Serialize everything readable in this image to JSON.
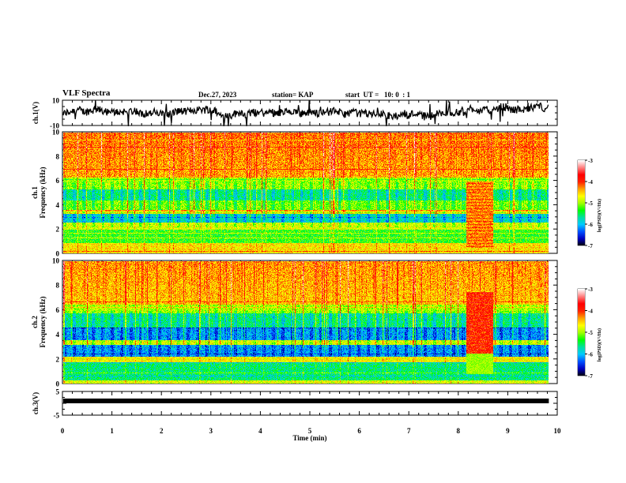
{
  "header": {
    "title": "VLF Spectra",
    "date": "Dec.27, 2023",
    "station": "station= KAP",
    "start_ut": "start  UT =   10: 0  : 1"
  },
  "chart_data": [
    {
      "id": "ch1-waveform",
      "type": "line",
      "title": "VLF Spectra",
      "ylabel": "ch.1(V)",
      "xlabel": "",
      "xlim": [
        0,
        10
      ],
      "ylim": [
        -10,
        10
      ],
      "yticks": [
        "10",
        "-10"
      ],
      "data_end_min": 9.83,
      "description": "Noisy waveform fluctuating roughly between -8 and +8 V around a mean near 0 V",
      "approx_mean": 0,
      "approx_amplitude": 8
    },
    {
      "id": "ch1-spectrogram",
      "type": "heatmap",
      "ylabel_line1": "ch.1",
      "ylabel_line2": "Frequency  (kHz)",
      "xlim": [
        0,
        10
      ],
      "ylim": [
        0,
        10
      ],
      "yticks": [
        "0",
        "2",
        "4",
        "6",
        "8",
        "10"
      ],
      "data_end_min": 9.83,
      "colorbar": {
        "label": "log(PSD)(V²/Hz)",
        "range": [
          -7,
          -3
        ],
        "ticks": [
          "-3",
          "-4",
          "-5",
          "-6",
          "-7"
        ],
        "colormap": [
          "#000000",
          "#0000c0",
          "#0050ff",
          "#00c8ff",
          "#00e0a0",
          "#00ff00",
          "#a0ff00",
          "#ffff00",
          "#ffa000",
          "#ff2000",
          "#ff0000",
          "#ff8080",
          "#ffffff"
        ]
      },
      "features": [
        {
          "label": "strong emission band",
          "f_khz": [
            6.0,
            10.0
          ],
          "level": -4.2
        },
        {
          "label": "low level bands",
          "f_khz": [
            2.6,
            3.2
          ],
          "level": -5.8
        },
        {
          "label": "low level bands",
          "f_khz": [
            4.3,
            5.3
          ],
          "level": -5.6
        },
        {
          "label": "broadband burst",
          "t_min": [
            8.15,
            8.7
          ],
          "f_khz": [
            0.5,
            6.0
          ],
          "level": -4.3
        }
      ]
    },
    {
      "id": "ch2-spectrogram",
      "type": "heatmap",
      "ylabel_line1": "ch.2",
      "ylabel_line2": "Frequency  (kHz)",
      "xlim": [
        0,
        10
      ],
      "ylim": [
        0,
        10
      ],
      "yticks": [
        "0",
        "2",
        "4",
        "6",
        "8",
        "10"
      ],
      "data_end_min": 9.83,
      "colorbar": {
        "label": "log(PSD)(V²/Hz)",
        "range": [
          -7,
          -3
        ],
        "ticks": [
          "-3",
          "-4",
          "-5",
          "-6",
          "-7"
        ]
      },
      "features": [
        {
          "label": "strong emission band",
          "f_khz": [
            6.5,
            10.0
          ],
          "level": -4.3
        },
        {
          "label": "low level bands",
          "f_khz": [
            2.2,
            3.2
          ],
          "level": -6.0
        },
        {
          "label": "low level bands",
          "f_khz": [
            3.6,
            4.6
          ],
          "level": -6.0
        },
        {
          "label": "broadband burst",
          "t_min": [
            8.15,
            8.7
          ],
          "f_khz": [
            0.8,
            7.5
          ],
          "level": -4.0
        }
      ]
    },
    {
      "id": "ch3-waveform",
      "type": "line",
      "ylabel": "ch.3(V)",
      "xlabel": "Time  (min)",
      "xlim": [
        0,
        10
      ],
      "ylim": [
        -5,
        5
      ],
      "yticks": [
        "5",
        "0",
        "-5"
      ],
      "xticks": [
        "0",
        "1",
        "2",
        "3",
        "4",
        "5",
        "6",
        "7",
        "8",
        "9",
        "10"
      ],
      "data_end_min": 9.83,
      "description": "Nearly constant thick line",
      "approx_level": 0
    }
  ]
}
